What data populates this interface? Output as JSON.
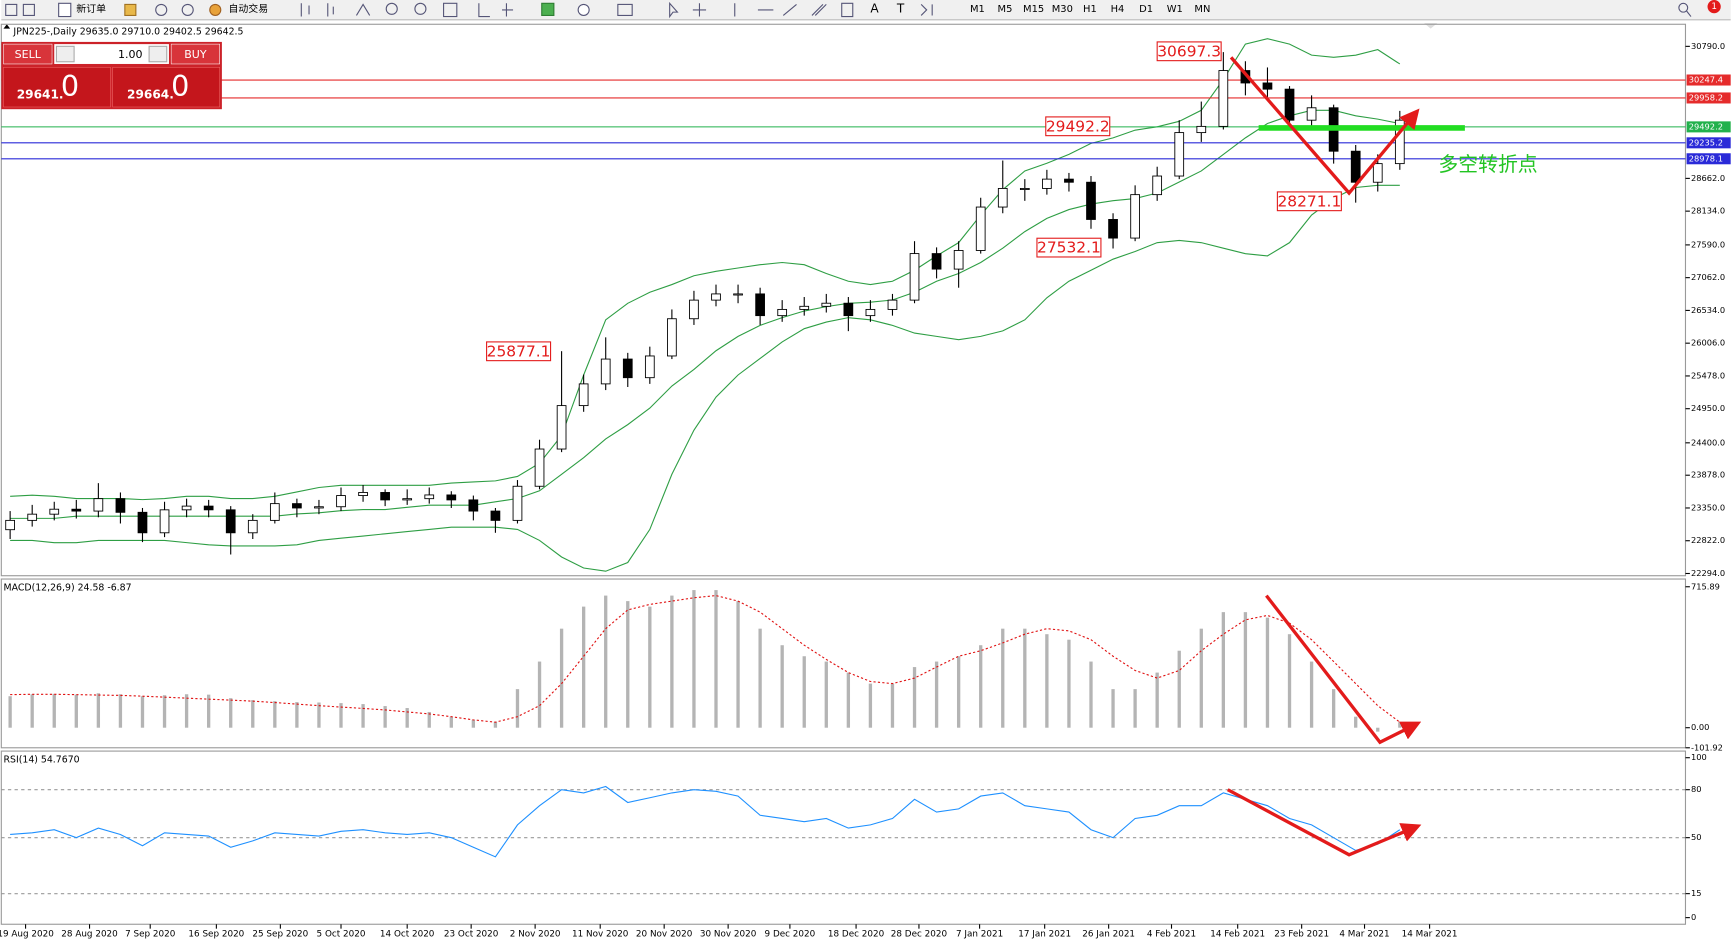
{
  "toolbar": {
    "new_order": "新订单",
    "auto_trading": "自动交易",
    "timeframes": [
      "M1",
      "M5",
      "M15",
      "M30",
      "H1",
      "H4",
      "D1",
      "W1",
      "MN"
    ],
    "badge": "1"
  },
  "trade_panel": {
    "sell": "SELL",
    "buy": "BUY",
    "volume": "1.00",
    "sell_price": "29641.",
    "sell_pips": "0",
    "buy_price": "29664.",
    "buy_pips": "0"
  },
  "chart_data": [
    {
      "type": "candlestick",
      "title": "JPN225-,Daily  29635.0 29710.0 29402.5 29642.5",
      "note": "多空转折点",
      "open": [
        23000,
        23150,
        23250,
        23330,
        23300,
        23500,
        23280,
        22950,
        23320,
        23380,
        23320,
        22950,
        23150,
        23420,
        23350,
        23370,
        23550,
        23600,
        23480,
        23500,
        23560,
        23480,
        23300,
        23150,
        23700,
        24300,
        25000,
        25350,
        25750,
        25450,
        25800,
        26400,
        26700,
        26800,
        26800,
        26450,
        26550,
        26600,
        26650,
        26450,
        26550,
        26700,
        27450,
        27200,
        27500,
        28200,
        28500,
        28500,
        28650,
        28600,
        28000,
        27700,
        28400,
        28700,
        29400,
        29500,
        30400,
        30200,
        30100,
        29600,
        29800,
        29100,
        28600,
        28900
      ],
      "high": [
        23300,
        23400,
        23450,
        23480,
        23750,
        23600,
        23350,
        23450,
        23500,
        23480,
        23380,
        23250,
        23600,
        23500,
        23480,
        23680,
        23720,
        23650,
        23650,
        23680,
        23620,
        23550,
        23350,
        23800,
        24450,
        25877.1,
        25500,
        26100,
        25850,
        25950,
        26550,
        26850,
        26950,
        26950,
        26900,
        26700,
        26750,
        26800,
        26750,
        26700,
        26800,
        27650,
        27550,
        27650,
        28350,
        28950,
        28650,
        28800,
        28750,
        28700,
        28100,
        28550,
        28850,
        29600,
        29900,
        30697.3,
        30550,
        30450,
        30150,
        30000,
        29850,
        29200,
        29050,
        29750
      ],
      "low": [
        22850,
        23050,
        23150,
        23180,
        23200,
        23100,
        22800,
        22880,
        23200,
        23200,
        22600,
        22850,
        23100,
        23200,
        23250,
        23300,
        23450,
        23380,
        23400,
        23420,
        23350,
        23150,
        22950,
        23100,
        23650,
        24250,
        24900,
        25250,
        25300,
        25350,
        25750,
        26300,
        26600,
        26650,
        26300,
        26350,
        26450,
        26500,
        26200,
        26350,
        26450,
        26650,
        27050,
        26900,
        27450,
        28100,
        28300,
        28400,
        28450,
        27850,
        27532.1,
        27650,
        28300,
        28650,
        29250,
        29450,
        30000,
        29950,
        29450,
        29500,
        28900,
        28271.1,
        28450,
        28800
      ],
      "close": [
        23150,
        23250,
        23330,
        23300,
        23500,
        23280,
        22950,
        23320,
        23380,
        23320,
        22950,
        23150,
        23420,
        23350,
        23370,
        23550,
        23600,
        23480,
        23500,
        23560,
        23480,
        23300,
        23150,
        23700,
        24300,
        25000,
        25350,
        25750,
        25450,
        25800,
        26400,
        26700,
        26800,
        26800,
        26450,
        26550,
        26600,
        26650,
        26450,
        26550,
        26700,
        27450,
        27200,
        27500,
        28200,
        28500,
        28500,
        28650,
        28600,
        28000,
        27700,
        28400,
        28700,
        29400,
        29500,
        30400,
        30200,
        30100,
        29600,
        29800,
        29100,
        28600,
        28900,
        29600
      ],
      "band_color": "#2e9e44",
      "upper": [
        23538,
        23556,
        23538,
        23503,
        23503,
        23503,
        23485,
        23503,
        23538,
        23538,
        23503,
        23503,
        23538,
        23609,
        23680,
        23716,
        23716,
        23716,
        23716,
        23716,
        23751,
        23769,
        23787,
        23858,
        24071,
        24516,
        25493,
        26382,
        26649,
        26826,
        26951,
        27093,
        27164,
        27217,
        27271,
        27306,
        27271,
        27129,
        27004,
        26951,
        27004,
        27182,
        27413,
        27626,
        28071,
        28479,
        28782,
        28906,
        29048,
        29226,
        29315,
        29439,
        29492,
        29581,
        29759,
        30257,
        30826,
        30914,
        30826,
        30648,
        30612,
        30648,
        30737,
        30506
      ],
      "middle": [
        23183,
        23183,
        23183,
        23218,
        23218,
        23218,
        23218,
        23218,
        23218,
        23218,
        23218,
        23218,
        23218,
        23254,
        23272,
        23307,
        23325,
        23325,
        23360,
        23396,
        23396,
        23396,
        23449,
        23503,
        23627,
        23894,
        24160,
        24462,
        24693,
        24960,
        25316,
        25582,
        25884,
        26115,
        26293,
        26418,
        26524,
        26595,
        26649,
        26666,
        26702,
        26826,
        27004,
        27129,
        27306,
        27537,
        27804,
        28017,
        28159,
        28248,
        28302,
        28337,
        28426,
        28604,
        28782,
        29048,
        29315,
        29546,
        29670,
        29759,
        29759,
        29670,
        29617,
        29546
      ],
      "lower": [
        22827,
        22827,
        22792,
        22792,
        22827,
        22827,
        22827,
        22827,
        22792,
        22756,
        22738,
        22738,
        22738,
        22756,
        22827,
        22863,
        22898,
        22934,
        22969,
        23005,
        23041,
        23041,
        23041,
        23005,
        22827,
        22561,
        22383,
        22330,
        22472,
        23005,
        23894,
        24605,
        25138,
        25493,
        25760,
        26027,
        26240,
        26346,
        26418,
        26382,
        26293,
        26169,
        26115,
        26062,
        26115,
        26204,
        26382,
        26738,
        27004,
        27182,
        27360,
        27484,
        27626,
        27662,
        27626,
        27537,
        27448,
        27413,
        27626,
        28071,
        28337,
        28515,
        28550,
        28550
      ],
      "price_lines": [
        {
          "value": 30247.4,
          "color": "#e52b2b"
        },
        {
          "value": 29958.2,
          "color": "#e52b2b"
        },
        {
          "value": 29492.2,
          "color": "#22b14c"
        },
        {
          "value": 29235.2,
          "color": "#2a2ad8"
        },
        {
          "value": 28978.1,
          "color": "#2a2ad8"
        }
      ],
      "ylim": [
        22258,
        31146
      ],
      "yticks": [
        {
          "value": 30790,
          "label": "30790.0"
        },
        {
          "value": 28662,
          "label": "28662.0"
        },
        {
          "value": 28134,
          "label": "28134.0"
        },
        {
          "value": 27590,
          "label": "27590.0"
        },
        {
          "value": 27062,
          "label": "27062.0"
        },
        {
          "value": 26534,
          "label": "26534.0"
        },
        {
          "value": 26006,
          "label": "26006.0"
        },
        {
          "value": 25478,
          "label": "25478.0"
        },
        {
          "value": 24950,
          "label": "24950.0"
        },
        {
          "value": 24400,
          "label": "24400.0"
        },
        {
          "value": 23878,
          "label": "23878.0"
        },
        {
          "value": 23350,
          "label": "23350.0"
        },
        {
          "value": 22822,
          "label": "22822.0"
        },
        {
          "value": 22294,
          "label": "22294.0"
        }
      ],
      "xlim": [
        -0.4,
        75.95
      ],
      "xticks": [
        {
          "value": 0.7,
          "label": "19 Aug 2020"
        },
        {
          "value": 3.6,
          "label": "28 Aug 2020"
        },
        {
          "value": 6.35,
          "label": "7 Sep 2020"
        },
        {
          "value": 9.35,
          "label": "16 Sep 2020"
        },
        {
          "value": 12.25,
          "label": "25 Sep 2020"
        },
        {
          "value": 15,
          "label": "5 Oct 2020"
        },
        {
          "value": 18,
          "label": "14 Oct 2020"
        },
        {
          "value": 20.9,
          "label": "23 Oct 2020"
        },
        {
          "value": 23.8,
          "label": "2 Nov 2020"
        },
        {
          "value": 26.75,
          "label": "11 Nov 2020"
        },
        {
          "value": 29.65,
          "label": "20 Nov 2020"
        },
        {
          "value": 32.55,
          "label": "30 Nov 2020"
        },
        {
          "value": 35.35,
          "label": "9 Dec 2020"
        },
        {
          "value": 38.35,
          "label": "18 Dec 2020"
        },
        {
          "value": 41.2,
          "label": "28 Dec 2020"
        },
        {
          "value": 43.95,
          "label": "7 Jan 2021"
        },
        {
          "value": 46.9,
          "label": "17 Jan 2021"
        },
        {
          "value": 49.8,
          "label": "26 Jan 2021"
        },
        {
          "value": 52.65,
          "label": "4 Feb 2021"
        },
        {
          "value": 55.65,
          "label": "14 Feb 2021"
        },
        {
          "value": 58.55,
          "label": "23 Feb 2021"
        },
        {
          "value": 61.4,
          "label": "4 Mar 2021"
        },
        {
          "value": 64.35,
          "label": "14 Mar 2021"
        }
      ]
    },
    {
      "type": "macd",
      "title": "MACD(12,26,9) 24.58 -6.87",
      "histogram": [
        160,
        170,
        172,
        168,
        175,
        170,
        160,
        165,
        170,
        168,
        150,
        140,
        135,
        130,
        128,
        125,
        120,
        110,
        100,
        80,
        56,
        40,
        30,
        196,
        336,
        503,
        615,
        671,
        643,
        615,
        671,
        699,
        699,
        643,
        503,
        419,
        363,
        336,
        280,
        224,
        224,
        308,
        336,
        363,
        419,
        503,
        503,
        475,
        447,
        336,
        196,
        196,
        280,
        391,
        503,
        587,
        587,
        559,
        475,
        336,
        196,
        56,
        -20,
        28
      ],
      "signal": [
        168,
        170,
        170,
        168,
        166,
        164,
        160,
        155,
        150,
        145,
        140,
        135,
        128,
        120,
        112,
        105,
        98,
        90,
        80,
        70,
        56,
        40,
        28,
        56,
        112,
        224,
        363,
        503,
        598,
        626,
        643,
        660,
        671,
        643,
        587,
        503,
        419,
        347,
        280,
        235,
        224,
        252,
        308,
        363,
        391,
        431,
        475,
        503,
        492,
        447,
        363,
        291,
        252,
        291,
        391,
        475,
        548,
        570,
        531,
        447,
        336,
        224,
        112,
        28
      ],
      "histogram_color": "#b4b4b4",
      "signal_color": "#e01010",
      "ylim": [
        -101.92,
        715.89
      ],
      "yticks": [
        715.89,
        {
          "value": 0,
          "label": "0.00"
        },
        -101.92
      ]
    },
    {
      "type": "line",
      "title": "RSI(14) 54.7670",
      "values": [
        52,
        53,
        55,
        50,
        56,
        52,
        45,
        53,
        52,
        51,
        44,
        48,
        53,
        52,
        51,
        54,
        55,
        53,
        52,
        53,
        50,
        44,
        38,
        58,
        70,
        80,
        78,
        82,
        72,
        75,
        78,
        80,
        79,
        76,
        64,
        62,
        60,
        62,
        56,
        58,
        62,
        74,
        66,
        68,
        76,
        78,
        70,
        68,
        66,
        55,
        50,
        62,
        64,
        70,
        70,
        78,
        74,
        70,
        62,
        58,
        50,
        42,
        46,
        55
      ],
      "color": "#1e90ff",
      "grid": true,
      "ylim": [
        0,
        100
      ],
      "yticks": [
        100,
        80,
        50,
        15,
        0
      ]
    }
  ]
}
